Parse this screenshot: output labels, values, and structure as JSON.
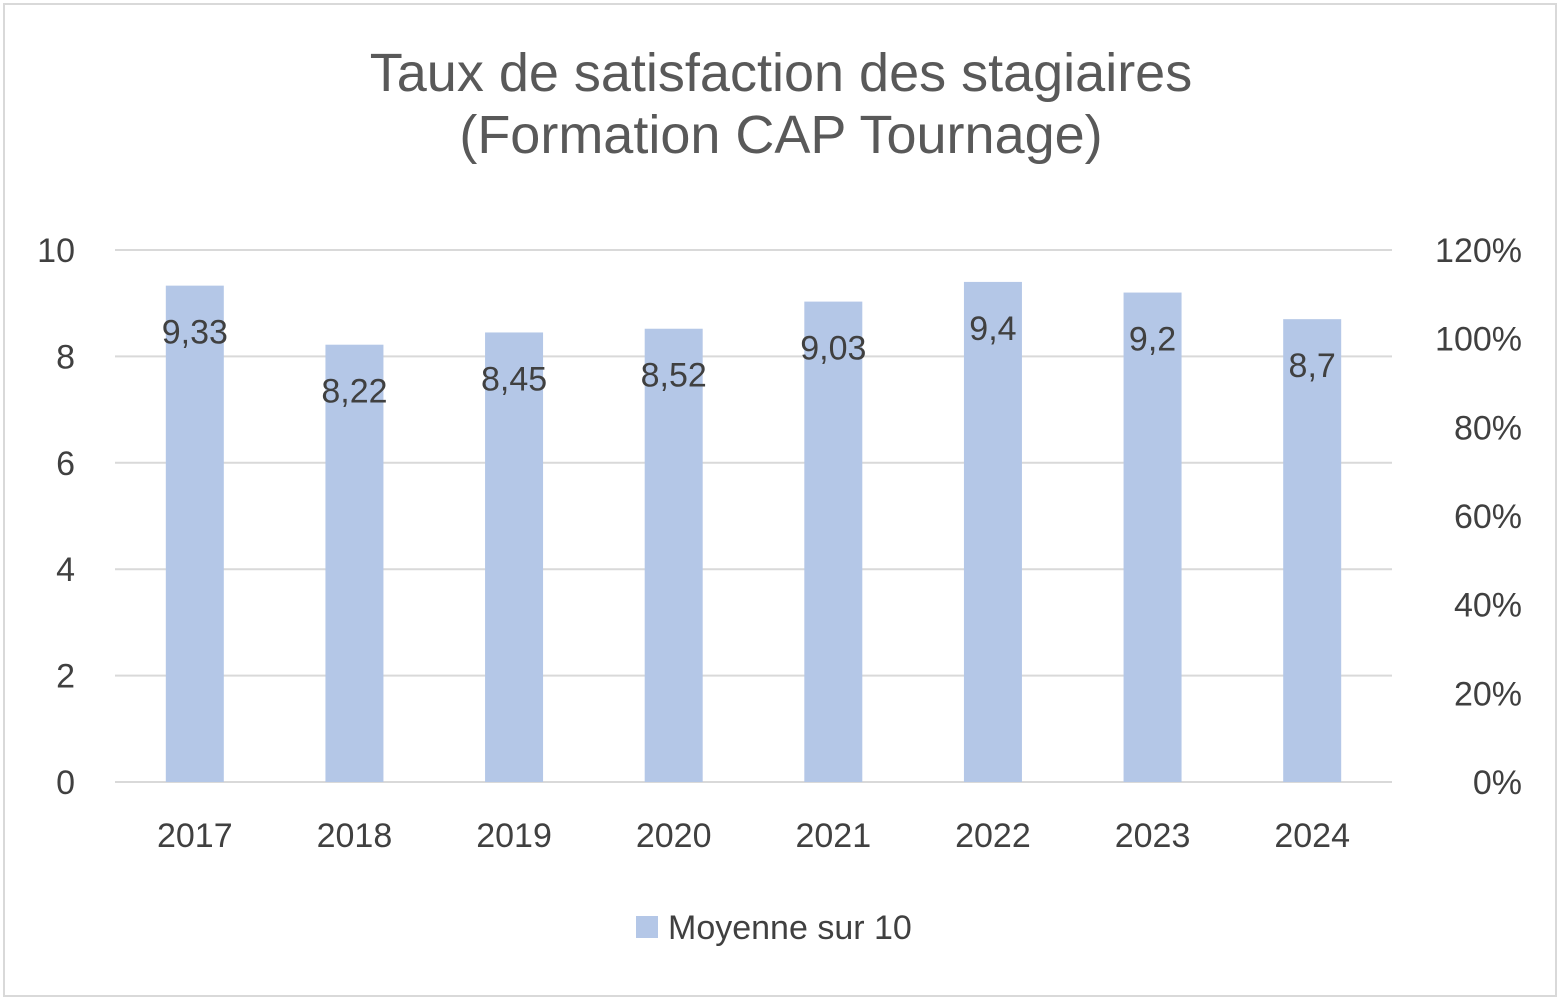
{
  "chart_data": {
    "type": "bar",
    "title": "Taux de satisfaction des stagiaires",
    "subtitle": "(Formation CAP Tournage)",
    "categories": [
      "2017",
      "2018",
      "2019",
      "2020",
      "2021",
      "2022",
      "2023",
      "2024"
    ],
    "series": [
      {
        "name": "Moyenne sur 10",
        "values": [
          9.33,
          8.22,
          8.45,
          8.52,
          9.03,
          9.4,
          9.2,
          8.7
        ],
        "data_labels": [
          "9,33",
          "8,22",
          "8,45",
          "8,52",
          "9,03",
          "9,4",
          "9,2",
          "8,7"
        ],
        "color": "#b4c7e7"
      }
    ],
    "ylim": [
      0,
      10
    ],
    "yticks": [
      "0",
      "2",
      "4",
      "6",
      "8",
      "10"
    ],
    "y2lim": [
      0,
      1.2
    ],
    "y2ticks": [
      "0%",
      "20%",
      "40%",
      "60%",
      "80%",
      "100%",
      "120%"
    ],
    "grid": true,
    "legend_position": "bottom",
    "colors": {
      "bar": "#b4c7e7",
      "grid": "#d9d9d9",
      "text": "#404040",
      "title": "#595959"
    }
  }
}
